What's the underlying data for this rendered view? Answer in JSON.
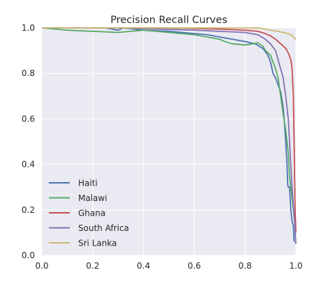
{
  "chart_data": {
    "type": "line",
    "title": "Precision Recall Curves",
    "xlabel": "",
    "ylabel": "",
    "xlim": [
      0.0,
      1.0
    ],
    "ylim": [
      0.0,
      1.0
    ],
    "xticks": [
      "0.0",
      "0.2",
      "0.4",
      "0.6",
      "0.8",
      "1.0"
    ],
    "yticks": [
      "0.0",
      "0.2",
      "0.4",
      "0.6",
      "0.8",
      "1.0"
    ],
    "grid": true,
    "legend": "lower-left",
    "series": [
      {
        "name": "Haiti",
        "color": "#4c72b0",
        "points": [
          [
            0.0,
            1.0
          ],
          [
            0.25,
            1.0
          ],
          [
            0.3,
            0.99
          ],
          [
            0.32,
            1.0
          ],
          [
            0.4,
            0.99
          ],
          [
            0.5,
            0.985
          ],
          [
            0.55,
            0.98
          ],
          [
            0.6,
            0.975
          ],
          [
            0.65,
            0.97
          ],
          [
            0.7,
            0.96
          ],
          [
            0.75,
            0.95
          ],
          [
            0.8,
            0.94
          ],
          [
            0.84,
            0.93
          ],
          [
            0.87,
            0.91
          ],
          [
            0.89,
            0.88
          ],
          [
            0.9,
            0.85
          ],
          [
            0.91,
            0.8
          ],
          [
            0.92,
            0.78
          ],
          [
            0.93,
            0.75
          ],
          [
            0.94,
            0.72
          ],
          [
            0.95,
            0.65
          ],
          [
            0.955,
            0.58
          ],
          [
            0.96,
            0.5
          ],
          [
            0.965,
            0.4
          ],
          [
            0.968,
            0.31
          ],
          [
            0.97,
            0.3
          ],
          [
            0.975,
            0.3
          ],
          [
            0.98,
            0.2
          ],
          [
            0.985,
            0.15
          ],
          [
            0.99,
            0.13
          ],
          [
            0.993,
            0.06
          ]
        ]
      },
      {
        "name": "Malawi",
        "color": "#55a868",
        "points": [
          [
            0.0,
            1.0
          ],
          [
            0.1,
            0.99
          ],
          [
            0.2,
            0.985
          ],
          [
            0.3,
            0.98
          ],
          [
            0.35,
            0.985
          ],
          [
            0.4,
            0.99
          ],
          [
            0.45,
            0.985
          ],
          [
            0.5,
            0.98
          ],
          [
            0.55,
            0.975
          ],
          [
            0.6,
            0.97
          ],
          [
            0.65,
            0.96
          ],
          [
            0.7,
            0.95
          ],
          [
            0.72,
            0.94
          ],
          [
            0.75,
            0.93
          ],
          [
            0.8,
            0.925
          ],
          [
            0.83,
            0.93
          ],
          [
            0.85,
            0.935
          ],
          [
            0.87,
            0.92
          ],
          [
            0.88,
            0.9
          ],
          [
            0.9,
            0.88
          ],
          [
            0.91,
            0.85
          ],
          [
            0.92,
            0.82
          ],
          [
            0.93,
            0.78
          ],
          [
            0.94,
            0.7
          ],
          [
            0.95,
            0.62
          ],
          [
            0.96,
            0.55
          ],
          [
            0.97,
            0.45
          ],
          [
            0.975,
            0.35
          ],
          [
            0.98,
            0.3
          ],
          [
            0.985,
            0.25
          ],
          [
            0.99,
            0.2
          ],
          [
            0.995,
            0.15
          ]
        ]
      },
      {
        "name": "Ghana",
        "color": "#c44e52",
        "points": [
          [
            0.0,
            1.0
          ],
          [
            0.5,
            1.0
          ],
          [
            0.7,
            0.995
          ],
          [
            0.8,
            0.99
          ],
          [
            0.85,
            0.985
          ],
          [
            0.88,
            0.975
          ],
          [
            0.9,
            0.965
          ],
          [
            0.92,
            0.95
          ],
          [
            0.94,
            0.93
          ],
          [
            0.96,
            0.91
          ],
          [
            0.97,
            0.89
          ],
          [
            0.98,
            0.86
          ],
          [
            0.985,
            0.82
          ],
          [
            0.99,
            0.7
          ],
          [
            0.993,
            0.5
          ],
          [
            0.995,
            0.35
          ],
          [
            0.997,
            0.2
          ],
          [
            1.0,
            0.1
          ]
        ]
      },
      {
        "name": "South Africa",
        "color": "#8172b2",
        "points": [
          [
            0.0,
            1.0
          ],
          [
            0.3,
            1.0
          ],
          [
            0.45,
            0.995
          ],
          [
            0.6,
            0.99
          ],
          [
            0.7,
            0.985
          ],
          [
            0.8,
            0.98
          ],
          [
            0.85,
            0.97
          ],
          [
            0.88,
            0.95
          ],
          [
            0.9,
            0.93
          ],
          [
            0.92,
            0.9
          ],
          [
            0.93,
            0.86
          ],
          [
            0.94,
            0.82
          ],
          [
            0.95,
            0.78
          ],
          [
            0.96,
            0.7
          ],
          [
            0.97,
            0.6
          ],
          [
            0.975,
            0.5
          ],
          [
            0.98,
            0.4
          ],
          [
            0.985,
            0.3
          ],
          [
            0.99,
            0.22
          ],
          [
            0.995,
            0.15
          ],
          [
            1.0,
            0.05
          ]
        ]
      },
      {
        "name": "Sri Lanka",
        "color": "#ccb974",
        "points": [
          [
            0.0,
            1.0
          ],
          [
            0.85,
            1.0
          ],
          [
            0.88,
            0.995
          ],
          [
            0.9,
            0.99
          ],
          [
            0.93,
            0.985
          ],
          [
            0.95,
            0.98
          ],
          [
            0.97,
            0.975
          ],
          [
            0.98,
            0.97
          ],
          [
            0.99,
            0.96
          ],
          [
            1.0,
            0.95
          ]
        ]
      }
    ]
  }
}
